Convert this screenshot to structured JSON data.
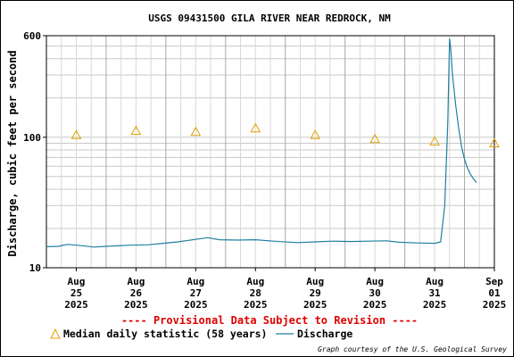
{
  "chart_data": {
    "type": "line",
    "title": "USGS 09431500 GILA RIVER NEAR REDROCK, NM",
    "ylabel": "Discharge, cubic feet per second",
    "yscale": "log",
    "ylim": [
      10,
      600
    ],
    "yticks": [
      {
        "value": 10,
        "label": "10"
      },
      {
        "value": 100,
        "label": "100"
      },
      {
        "value": 600,
        "label": "600"
      }
    ],
    "x_day_range": [
      25,
      32.5
    ],
    "xticks": [
      {
        "day": 25.5,
        "lines": [
          "Aug",
          "25",
          "2025"
        ]
      },
      {
        "day": 26.5,
        "lines": [
          "Aug",
          "26",
          "2025"
        ]
      },
      {
        "day": 27.5,
        "lines": [
          "Aug",
          "27",
          "2025"
        ]
      },
      {
        "day": 28.5,
        "lines": [
          "Aug",
          "28",
          "2025"
        ]
      },
      {
        "day": 29.5,
        "lines": [
          "Aug",
          "29",
          "2025"
        ]
      },
      {
        "day": 30.5,
        "lines": [
          "Aug",
          "30",
          "2025"
        ]
      },
      {
        "day": 31.5,
        "lines": [
          "Aug",
          "31",
          "2025"
        ]
      },
      {
        "day": 32.5,
        "lines": [
          "Sep",
          "01",
          "2025"
        ]
      }
    ],
    "grid": true,
    "colors": {
      "discharge": "#1f7fa0",
      "median": "#e0a000",
      "provisional": "#e00000"
    },
    "series": [
      {
        "name": "Discharge",
        "style": "line",
        "points": [
          [
            25.0,
            14.5
          ],
          [
            25.2,
            14.6
          ],
          [
            25.35,
            15.1
          ],
          [
            25.5,
            14.9
          ],
          [
            25.8,
            14.4
          ],
          [
            26.0,
            14.6
          ],
          [
            26.4,
            14.9
          ],
          [
            26.7,
            15.0
          ],
          [
            26.9,
            15.3
          ],
          [
            27.2,
            15.8
          ],
          [
            27.5,
            16.5
          ],
          [
            27.7,
            17.0
          ],
          [
            27.9,
            16.4
          ],
          [
            28.2,
            16.3
          ],
          [
            28.5,
            16.4
          ],
          [
            28.8,
            16.0
          ],
          [
            29.2,
            15.6
          ],
          [
            29.5,
            15.8
          ],
          [
            29.8,
            16.0
          ],
          [
            30.1,
            15.9
          ],
          [
            30.4,
            16.0
          ],
          [
            30.7,
            16.1
          ],
          [
            30.9,
            15.7
          ],
          [
            31.2,
            15.5
          ],
          [
            31.5,
            15.4
          ],
          [
            31.6,
            15.8
          ],
          [
            31.67,
            30
          ],
          [
            31.72,
            130
          ],
          [
            31.75,
            570
          ],
          [
            31.77,
            480
          ],
          [
            31.8,
            300
          ],
          [
            31.85,
            180
          ],
          [
            31.9,
            120
          ],
          [
            31.95,
            85
          ],
          [
            32.0,
            68
          ],
          [
            32.05,
            58
          ],
          [
            32.1,
            52
          ],
          [
            32.15,
            48
          ],
          [
            32.2,
            45
          ]
        ]
      },
      {
        "name": "Median daily statistic (58 years)",
        "style": "marker",
        "points": [
          [
            25.5,
            104
          ],
          [
            26.5,
            112
          ],
          [
            27.5,
            110
          ],
          [
            28.5,
            117
          ],
          [
            29.5,
            104
          ],
          [
            30.5,
            97
          ],
          [
            31.5,
            93
          ],
          [
            32.5,
            90
          ]
        ]
      }
    ]
  },
  "provisional_note": "---- Provisional Data Subject to Revision ----",
  "legend": {
    "median_label": "Median daily statistic (58 years)",
    "discharge_label": "Discharge"
  },
  "credit": "Graph courtesy of the U.S. Geological Survey"
}
